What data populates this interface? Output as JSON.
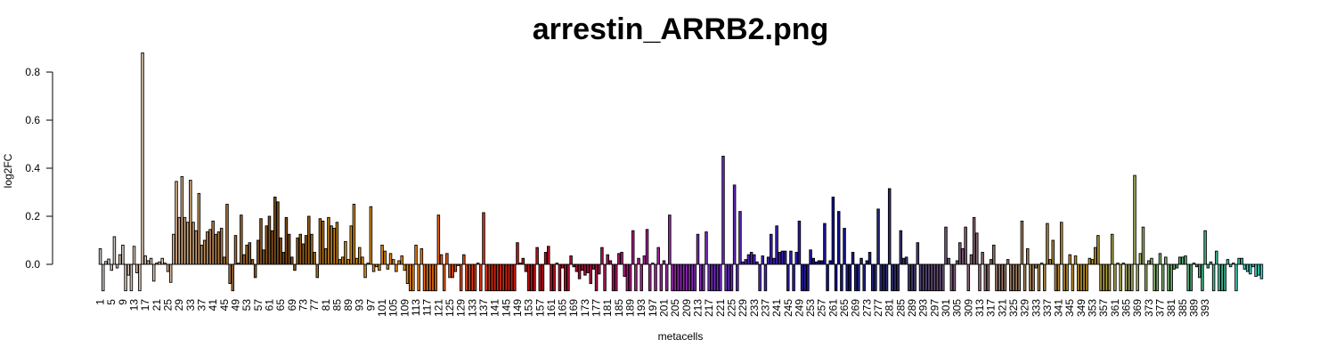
{
  "chart_data": {
    "type": "bar",
    "title": "arrestin_ARRB2.png",
    "xlabel": "metacells",
    "ylabel": "log2FC",
    "ylim": [
      -0.11,
      0.88
    ],
    "y_ticks": [
      0.0,
      0.2,
      0.4,
      0.6,
      0.8
    ],
    "y_tick_labels": [
      "0.0",
      "0.2",
      "0.4",
      "0.6",
      "0.8"
    ],
    "x_tick_labels": [
      "1",
      "5",
      "9",
      "13",
      "17",
      "21",
      "25",
      "29",
      "33",
      "37",
      "41",
      "45",
      "49",
      "53",
      "57",
      "61",
      "65",
      "69",
      "73",
      "77",
      "81",
      "85",
      "89",
      "93",
      "97",
      "101",
      "105",
      "109",
      "113",
      "117",
      "121",
      "125",
      "129",
      "133",
      "137",
      "141",
      "145",
      "149",
      "153",
      "157",
      "161",
      "165",
      "169",
      "173",
      "177",
      "181",
      "185",
      "189",
      "193",
      "197",
      "201",
      "205",
      "209",
      "213",
      "217",
      "221",
      "225",
      "229",
      "233",
      "237",
      "241",
      "245",
      "249",
      "253",
      "257",
      "261",
      "265",
      "269",
      "273",
      "277",
      "281",
      "285",
      "289",
      "293",
      "297",
      "301",
      "305",
      "309",
      "313",
      "317",
      "321",
      "325",
      "329",
      "333",
      "337",
      "341",
      "345",
      "349",
      "353",
      "357",
      "361",
      "365",
      "369",
      "373",
      "377",
      "381",
      "385",
      "389",
      "393"
    ],
    "x_tick_step": 4,
    "grid": false,
    "legend": "none",
    "categories_count": 396,
    "color_gradient": [
      "#c8c8c8",
      "#e8c8a8",
      "#b07840",
      "#7a4a14",
      "#d28c18",
      "#f08c10",
      "#e84010",
      "#cc1010",
      "#b01040",
      "#b020a0",
      "#7a30c8",
      "#4020c0",
      "#1010a0",
      "#303070",
      "#806080",
      "#a08060",
      "#c09020",
      "#a0b060",
      "#40b080",
      "#40e0d0"
    ],
    "values": [
      0.065,
      -0.11,
      0.012,
      0.022,
      -0.025,
      0.115,
      -0.015,
      0.04,
      0.08,
      -0.11,
      -0.045,
      -0.11,
      0.075,
      -0.035,
      -0.11,
      0.88,
      0.035,
      0.015,
      0.025,
      -0.07,
      0.005,
      0.01,
      0.025,
      0.005,
      -0.03,
      -0.075,
      0.125,
      0.345,
      0.195,
      0.365,
      0.195,
      0.175,
      0.35,
      0.175,
      0.14,
      0.295,
      0.08,
      0.1,
      0.135,
      0.145,
      0.18,
      0.125,
      0.135,
      0.15,
      0.03,
      0.25,
      -0.08,
      -0.11,
      0.12,
      0.005,
      0.205,
      0.04,
      0.08,
      0.09,
      0.02,
      -0.055,
      0.1,
      0.19,
      0.06,
      0.16,
      0.2,
      0.14,
      0.28,
      0.26,
      0.11,
      0.05,
      0.195,
      0.125,
      0.03,
      -0.025,
      0.11,
      0.125,
      0.085,
      0.12,
      0.2,
      0.125,
      0.05,
      -0.055,
      0.19,
      0.18,
      0.065,
      0.195,
      0.16,
      0.15,
      0.175,
      0.02,
      0.03,
      0.095,
      0.02,
      0.16,
      0.25,
      0.025,
      0.07,
      0.03,
      -0.055,
      0.005,
      0.24,
      -0.03,
      -0.01,
      -0.025,
      0.08,
      0.055,
      -0.02,
      0.045,
      0.02,
      -0.03,
      0.015,
      0.035,
      -0.025,
      -0.08,
      -0.11,
      -0.11,
      0.08,
      -0.11,
      0.065,
      -0.11,
      -0.11,
      -0.11,
      -0.11,
      -0.11,
      0.205,
      0.04,
      -0.11,
      0.045,
      -0.055,
      -0.055,
      -0.03,
      -0.005,
      -0.11,
      0.04,
      -0.11,
      -0.11,
      -0.11,
      -0.11,
      0.005,
      -0.11,
      0.215,
      -0.11,
      -0.11,
      -0.11,
      -0.11,
      -0.11,
      -0.11,
      -0.11,
      -0.11,
      -0.11,
      -0.11,
      -0.11,
      0.09,
      0.005,
      0.025,
      -0.03,
      -0.11,
      -0.11,
      -0.11,
      0.07,
      -0.11,
      -0.11,
      0.05,
      0.075,
      -0.11,
      -0.11,
      0.005,
      -0.11,
      -0.015,
      -0.11,
      -0.11,
      0.035,
      -0.01,
      -0.03,
      -0.06,
      -0.025,
      -0.045,
      -0.035,
      -0.08,
      -0.02,
      -0.11,
      -0.04,
      0.07,
      -0.11,
      0.04,
      0.015,
      -0.11,
      -0.11,
      0.045,
      0.05,
      -0.05,
      -0.11,
      -0.11,
      0.14,
      -0.11,
      0.025,
      -0.11,
      0.035,
      0.145,
      -0.11,
      0.005,
      -0.11,
      0.07,
      -0.11,
      0.015,
      -0.11,
      0.205,
      -0.11,
      -0.11,
      -0.11,
      -0.11,
      -0.11,
      -0.11,
      -0.11,
      -0.11,
      -0.11,
      0.125,
      -0.11,
      -0.11,
      0.135,
      -0.11,
      -0.11,
      -0.11,
      -0.11,
      -0.11,
      0.45,
      -0.11,
      -0.11,
      -0.11,
      0.33,
      -0.11,
      0.22,
      0.01,
      0.02,
      0.04,
      0.05,
      0.04,
      0.01,
      -0.11,
      0.035,
      -0.11,
      0.03,
      0.125,
      0.025,
      0.16,
      0.05,
      0.055,
      0.055,
      -0.11,
      0.055,
      -0.11,
      0.05,
      0.18,
      -0.11,
      -0.11,
      -0.11,
      0.06,
      0.025,
      0.01,
      0.015,
      0.015,
      0.17,
      -0.11,
      0.015,
      0.28,
      -0.11,
      0.22,
      -0.11,
      0.15,
      -0.11,
      -0.11,
      0.05,
      -0.11,
      -0.11,
      0.025,
      -0.11,
      0.015,
      0.05,
      -0.11,
      -0.11,
      0.23,
      -0.11,
      -0.11,
      -0.11,
      0.315,
      -0.11,
      -0.11,
      -0.11,
      0.14,
      0.025,
      0.03,
      -0.11,
      -0.11,
      -0.11,
      0.09,
      -0.11,
      -0.11,
      -0.11,
      -0.11,
      -0.11,
      -0.11,
      -0.11,
      -0.11,
      -0.11,
      0.155,
      0.025,
      -0.11,
      -0.11,
      0.015,
      0.09,
      0.065,
      0.155,
      -0.11,
      0.04,
      0.195,
      0.13,
      -0.11,
      0.05,
      -0.11,
      -0.11,
      0.02,
      0.08,
      -0.11,
      -0.11,
      -0.11,
      -0.11,
      0.02,
      -0.11,
      -0.11,
      -0.11,
      -0.11,
      0.18,
      -0.11,
      0.065,
      -0.11,
      -0.11,
      -0.015,
      -0.11,
      0.005,
      -0.11,
      0.17,
      0.02,
      0.1,
      -0.11,
      -0.11,
      0.175,
      -0.11,
      -0.11,
      0.04,
      -0.11,
      0.035,
      -0.11,
      -0.11,
      -0.11,
      -0.11,
      0.025,
      0.02,
      0.07,
      0.12,
      -0.11,
      -0.11,
      -0.11,
      -0.11,
      0.125,
      -0.11,
      0.005,
      -0.11,
      0.005,
      -0.11,
      -0.11,
      -0.11,
      0.37,
      -0.11,
      0.045,
      0.155,
      -0.11,
      0.015,
      0.025,
      -0.11,
      -0.11,
      0.045,
      -0.11,
      0.03,
      -0.11,
      -0.11,
      -0.02,
      -0.015,
      0.03,
      0.03,
      0.035,
      -0.11,
      -0.11,
      0.005,
      -0.01,
      -0.055,
      -0.11,
      0.14,
      -0.015,
      0.01,
      -0.11,
      0.055,
      -0.11,
      -0.11,
      -0.11,
      0.02,
      -0.01,
      0.005,
      -0.11,
      0.025,
      0.025,
      -0.02,
      -0.03,
      -0.04,
      -0.01,
      -0.05,
      -0.045,
      -0.06
    ]
  }
}
